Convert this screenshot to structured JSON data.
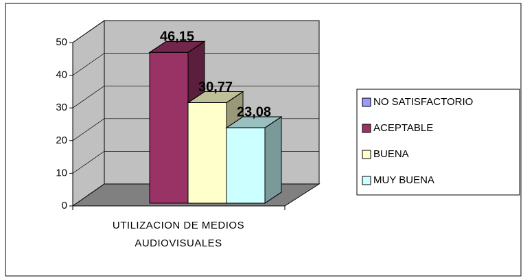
{
  "chart_data": {
    "type": "bar3d",
    "categories": [
      "UTILIZACION DE MEDIOS AUDIOVISUALES"
    ],
    "series": [
      {
        "name": "NO SATISFACTORIO",
        "color": "#9999ff",
        "values": [
          0
        ]
      },
      {
        "name": "ACEPTABLE",
        "color": "#993366",
        "values": [
          46.15
        ],
        "value_labels": [
          "46,15"
        ]
      },
      {
        "name": "BUENA",
        "color": "#ffffcc",
        "values": [
          30.77
        ],
        "value_labels": [
          "30,77"
        ]
      },
      {
        "name": "MUY BUENA",
        "color": "#ccffff",
        "values": [
          23.08
        ],
        "value_labels": [
          "23,08"
        ]
      }
    ],
    "ylim": [
      0,
      50
    ],
    "yticks": [
      0,
      10,
      20,
      30,
      40,
      50
    ],
    "grid": true,
    "legend": "right"
  }
}
